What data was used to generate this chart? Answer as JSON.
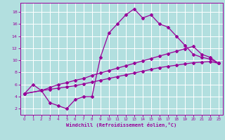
{
  "background_color": "#b2dfdf",
  "line_color": "#990099",
  "grid_color": "#ffffff",
  "xlabel": "Windchill (Refroidissement éolien,°C)",
  "xlim": [
    -0.5,
    23.5
  ],
  "ylim": [
    1.0,
    19.5
  ],
  "xticks": [
    0,
    1,
    2,
    3,
    4,
    5,
    6,
    7,
    8,
    9,
    10,
    11,
    12,
    13,
    14,
    15,
    16,
    17,
    18,
    19,
    20,
    21,
    22,
    23
  ],
  "yticks": [
    2,
    4,
    6,
    8,
    10,
    12,
    14,
    16,
    18
  ],
  "curve1_x": [
    0,
    1,
    2,
    3,
    4,
    5,
    6,
    7,
    8,
    9,
    10,
    11,
    12,
    13,
    14,
    15,
    16,
    17,
    18,
    19,
    20,
    21,
    22,
    23
  ],
  "curve1_y": [
    4.5,
    6.0,
    5.0,
    3.0,
    2.5,
    2.0,
    3.5,
    4.0,
    4.0,
    10.5,
    14.5,
    16.0,
    17.5,
    18.5,
    17.0,
    17.5,
    16.0,
    15.5,
    14.0,
    12.5,
    11.0,
    10.5,
    10.2,
    9.5
  ],
  "curve2_x": [
    0,
    2,
    3,
    4,
    5,
    6,
    7,
    8,
    9,
    10,
    11,
    12,
    13,
    14,
    15,
    16,
    17,
    18,
    19,
    20,
    21,
    22,
    23
  ],
  "curve2_y": [
    4.5,
    5.0,
    5.5,
    6.0,
    6.3,
    6.7,
    7.0,
    7.5,
    7.9,
    8.3,
    8.7,
    9.1,
    9.5,
    9.9,
    10.3,
    10.7,
    11.1,
    11.5,
    11.9,
    12.3,
    11.0,
    10.5,
    9.5
  ],
  "curve3_x": [
    0,
    2,
    3,
    4,
    5,
    6,
    7,
    8,
    9,
    10,
    11,
    12,
    13,
    14,
    15,
    16,
    17,
    18,
    19,
    20,
    21,
    22,
    23
  ],
  "curve3_y": [
    4.5,
    5.0,
    5.2,
    5.4,
    5.6,
    5.8,
    6.1,
    6.4,
    6.7,
    7.0,
    7.3,
    7.6,
    7.9,
    8.2,
    8.5,
    8.8,
    9.0,
    9.2,
    9.4,
    9.6,
    9.7,
    9.8,
    9.5
  ]
}
